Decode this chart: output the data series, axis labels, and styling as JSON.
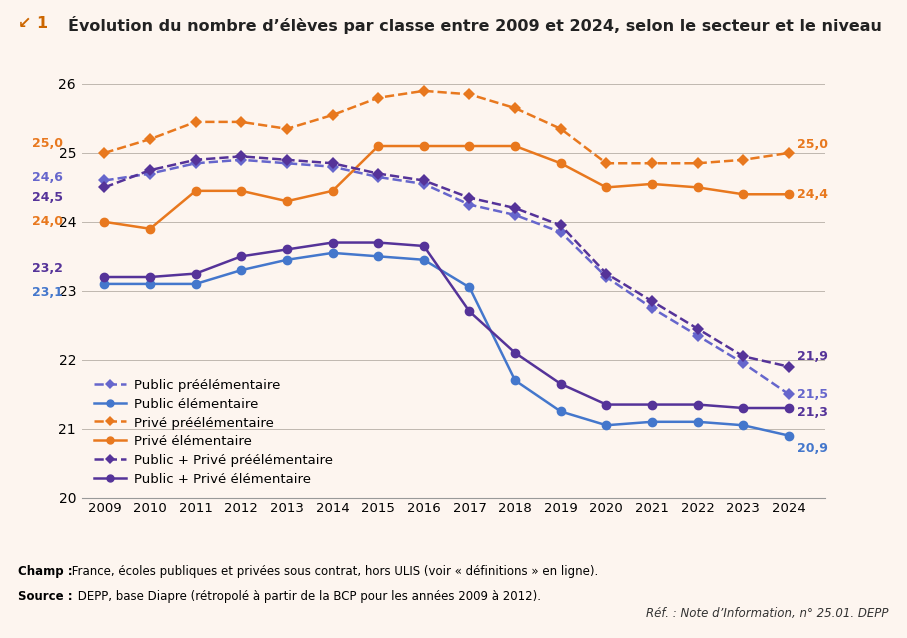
{
  "years": [
    2009,
    2010,
    2011,
    2012,
    2013,
    2014,
    2015,
    2016,
    2017,
    2018,
    2019,
    2020,
    2021,
    2022,
    2023,
    2024
  ],
  "series": {
    "public_pree": [
      24.6,
      24.7,
      24.85,
      24.9,
      24.85,
      24.8,
      24.65,
      24.55,
      24.25,
      24.1,
      23.85,
      23.2,
      22.75,
      22.35,
      21.95,
      21.5
    ],
    "public_elem": [
      23.1,
      23.1,
      23.1,
      23.3,
      23.45,
      23.55,
      23.5,
      23.45,
      23.05,
      21.7,
      21.25,
      21.05,
      21.1,
      21.1,
      21.05,
      20.9
    ],
    "prive_pree": [
      25.0,
      25.2,
      25.45,
      25.45,
      25.35,
      25.55,
      25.8,
      25.9,
      25.85,
      25.65,
      25.35,
      24.85,
      24.85,
      24.85,
      24.9,
      25.0
    ],
    "prive_elem": [
      24.0,
      23.9,
      24.45,
      24.45,
      24.3,
      24.45,
      25.1,
      25.1,
      25.1,
      25.1,
      24.85,
      24.5,
      24.55,
      24.5,
      24.4,
      24.4
    ],
    "pub_priv_pree": [
      24.5,
      24.75,
      24.9,
      24.95,
      24.9,
      24.85,
      24.7,
      24.6,
      24.35,
      24.2,
      23.95,
      23.25,
      22.85,
      22.45,
      22.05,
      21.9
    ],
    "pub_priv_elem": [
      23.2,
      23.2,
      23.25,
      23.5,
      23.6,
      23.7,
      23.7,
      23.65,
      22.7,
      22.1,
      21.65,
      21.35,
      21.35,
      21.35,
      21.3,
      21.3
    ]
  },
  "colors": {
    "public_pree": "#6666cc",
    "public_elem": "#4477cc",
    "prive_pree": "#e8781e",
    "prive_elem": "#e8781e",
    "pub_priv_pree": "#553399",
    "pub_priv_elem": "#553399"
  },
  "labels_left": {
    "public_pree": "24,6",
    "public_elem": "23,1",
    "prive_pree": "25,0",
    "prive_elem": "24,0",
    "pub_priv_pree": "24,5",
    "pub_priv_elem": "23,2"
  },
  "labels_right": {
    "public_pree": "21,5",
    "public_elem": "20,9",
    "prive_pree": "25,0",
    "prive_elem": "24,4",
    "pub_priv_pree": "21,9",
    "pub_priv_elem": "21,3"
  },
  "legend": [
    "Public préélémentaire",
    "Public élémentaire",
    "Privé préélémentaire",
    "Privé élémentaire",
    "Public + Privé préélémentaire",
    "Public + Privé élémentaire"
  ],
  "ylim": [
    20.0,
    26.2
  ],
  "yticks": [
    20,
    21,
    22,
    23,
    24,
    25,
    26
  ],
  "background_color": "#fdf5ef",
  "title_prefix": "↙ 1",
  "title_main": "Évolution du nombre d’élèves par classe entre 2009 et 2024, selon le secteur et le niveau",
  "champ_bold": "Champ :",
  "champ_rest": " France, écoles publiques et privées sous contrat, hors ULIS (voir « définitions » en ligne).",
  "source_bold": "Source :",
  "source_rest": " DEPP, base Diapre (rétropolé à partir de la BCP pour les années 2009 à 2012).",
  "ref_text": "Réf. : Note d’Information, n° 25.01. DEPP"
}
